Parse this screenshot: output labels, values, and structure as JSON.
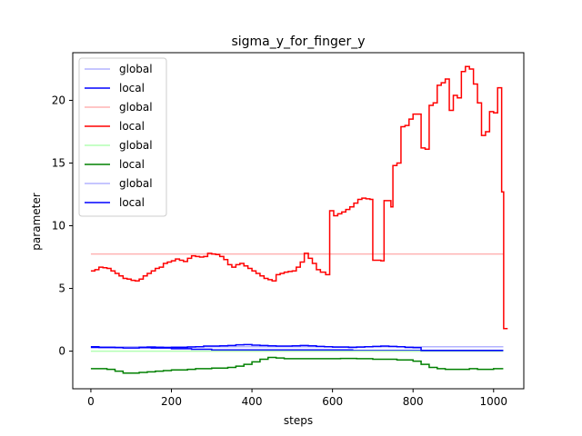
{
  "chart_data": {
    "type": "line",
    "title": "sigma_y_for_finger_y",
    "xlabel": "steps",
    "ylabel": "parameter",
    "xlim": [
      -45,
      1075
    ],
    "ylim": [
      -3.0,
      23.8
    ],
    "xticks": [
      0,
      200,
      400,
      600,
      800,
      1000
    ],
    "yticks": [
      0,
      5,
      10,
      15,
      20
    ],
    "grid": false,
    "legend_placement": "top-left",
    "series": [
      {
        "name": "global",
        "color": "#b3b3ff",
        "style": "step",
        "x": [
          0,
          1024
        ],
        "y": [
          0.35,
          0.35
        ]
      },
      {
        "name": "local",
        "color": "#0000ff",
        "style": "step",
        "x": [
          0,
          50,
          100,
          150,
          200,
          250,
          300,
          350,
          380,
          420,
          450,
          500,
          550,
          600,
          650,
          700,
          750,
          800,
          850,
          900,
          950,
          1000,
          1024
        ],
        "y": [
          0.3,
          0.3,
          0.28,
          0.25,
          0.2,
          0.15,
          0.1,
          0.1,
          0.1,
          0.1,
          0.1,
          0.1,
          0.1,
          0.1,
          0.05,
          0.05,
          0.05,
          0.05,
          0.05,
          0.05,
          0.05,
          0.05,
          0.05
        ]
      },
      {
        "name": "global",
        "color": "#ffb3b3",
        "style": "step",
        "x": [
          0,
          1024
        ],
        "y": [
          7.75,
          7.75
        ]
      },
      {
        "name": "local",
        "color": "#ff0000",
        "style": "step",
        "x": [
          0,
          10,
          20,
          30,
          40,
          50,
          60,
          70,
          80,
          90,
          100,
          110,
          120,
          130,
          140,
          150,
          160,
          170,
          180,
          190,
          200,
          210,
          220,
          230,
          240,
          250,
          260,
          270,
          280,
          290,
          300,
          310,
          320,
          330,
          340,
          350,
          360,
          370,
          380,
          390,
          400,
          410,
          420,
          430,
          440,
          450,
          460,
          470,
          480,
          490,
          500,
          510,
          520,
          530,
          540,
          550,
          560,
          570,
          583,
          593,
          603,
          613,
          623,
          633,
          643,
          653,
          663,
          673,
          683,
          693,
          700,
          720,
          728,
          745,
          750,
          760,
          770,
          780,
          790,
          800,
          810,
          820,
          830,
          840,
          850,
          860,
          870,
          880,
          890,
          900,
          910,
          920,
          930,
          940,
          950,
          960,
          970,
          980,
          990,
          1000,
          1010,
          1020,
          1025,
          1035
        ],
        "y": [
          6.4,
          6.5,
          6.7,
          6.65,
          6.6,
          6.4,
          6.2,
          6.0,
          5.8,
          5.75,
          5.65,
          5.6,
          5.75,
          6.0,
          6.2,
          6.4,
          6.6,
          6.7,
          7.0,
          7.1,
          7.2,
          7.35,
          7.25,
          7.15,
          7.4,
          7.6,
          7.55,
          7.5,
          7.55,
          7.8,
          7.75,
          7.7,
          7.55,
          7.3,
          6.9,
          6.7,
          6.9,
          7.0,
          6.8,
          6.6,
          6.4,
          6.2,
          6.0,
          5.8,
          5.7,
          5.6,
          6.1,
          6.2,
          6.3,
          6.35,
          6.4,
          6.7,
          7.1,
          7.8,
          7.4,
          7.0,
          6.5,
          6.3,
          6.1,
          11.2,
          10.8,
          10.95,
          11.1,
          11.3,
          11.5,
          11.8,
          12.1,
          12.2,
          12.15,
          12.1,
          7.25,
          7.2,
          12.0,
          11.5,
          14.8,
          15.0,
          17.9,
          18.0,
          18.5,
          18.9,
          18.9,
          16.2,
          16.1,
          19.6,
          19.8,
          21.2,
          21.4,
          21.7,
          19.2,
          20.4,
          20.2,
          22.3,
          22.7,
          22.5,
          21.3,
          19.8,
          17.2,
          17.5,
          19.1,
          19.0,
          21.0,
          12.7,
          1.8,
          1.8
        ]
      },
      {
        "name": "global",
        "color": "#b3ffb3",
        "style": "step",
        "x": [
          0,
          1024
        ],
        "y": [
          0.0,
          0.0
        ]
      },
      {
        "name": "local",
        "color": "#008000",
        "style": "step",
        "x": [
          0,
          20,
          40,
          60,
          80,
          100,
          120,
          140,
          160,
          180,
          200,
          220,
          240,
          260,
          280,
          300,
          320,
          340,
          360,
          380,
          400,
          420,
          440,
          460,
          480,
          500,
          540,
          580,
          620,
          660,
          700,
          740,
          760,
          780,
          800,
          820,
          840,
          860,
          880,
          900,
          920,
          940,
          960,
          980,
          1000,
          1024
        ],
        "y": [
          -1.4,
          -1.4,
          -1.45,
          -1.6,
          -1.75,
          -1.75,
          -1.7,
          -1.65,
          -1.6,
          -1.55,
          -1.5,
          -1.5,
          -1.45,
          -1.4,
          -1.4,
          -1.35,
          -1.35,
          -1.3,
          -1.2,
          -1.05,
          -0.85,
          -0.65,
          -0.5,
          -0.55,
          -0.6,
          -0.6,
          -0.6,
          -0.6,
          -0.58,
          -0.6,
          -0.65,
          -0.65,
          -0.7,
          -0.7,
          -0.8,
          -1.05,
          -1.3,
          -1.4,
          -1.45,
          -1.45,
          -1.45,
          -1.4,
          -1.45,
          -1.45,
          -1.4,
          -1.4
        ]
      },
      {
        "name": "global",
        "color": "#b3b3ff",
        "style": "step",
        "x": [
          0,
          1024
        ],
        "y": [
          0.35,
          0.35
        ]
      },
      {
        "name": "local",
        "color": "#0000ff",
        "style": "step",
        "x": [
          0,
          20,
          40,
          60,
          80,
          100,
          120,
          140,
          160,
          180,
          200,
          220,
          240,
          260,
          280,
          300,
          320,
          340,
          360,
          380,
          400,
          420,
          440,
          460,
          480,
          500,
          520,
          540,
          560,
          580,
          600,
          620,
          640,
          660,
          680,
          700,
          720,
          740,
          760,
          780,
          800,
          820,
          840,
          860,
          880,
          900,
          920,
          940,
          960,
          980,
          1000,
          1024
        ],
        "y": [
          0.35,
          0.3,
          0.3,
          0.28,
          0.25,
          0.25,
          0.3,
          0.32,
          0.3,
          0.28,
          0.3,
          0.3,
          0.33,
          0.35,
          0.4,
          0.4,
          0.42,
          0.45,
          0.5,
          0.52,
          0.48,
          0.45,
          0.42,
          0.4,
          0.4,
          0.42,
          0.45,
          0.42,
          0.38,
          0.35,
          0.32,
          0.32,
          0.3,
          0.32,
          0.35,
          0.38,
          0.4,
          0.38,
          0.35,
          0.3,
          0.28,
          0.05,
          0.05,
          0.05,
          0.05,
          0.05,
          0.05,
          0.05,
          0.05,
          0.05,
          0.05,
          0.05
        ]
      }
    ]
  }
}
